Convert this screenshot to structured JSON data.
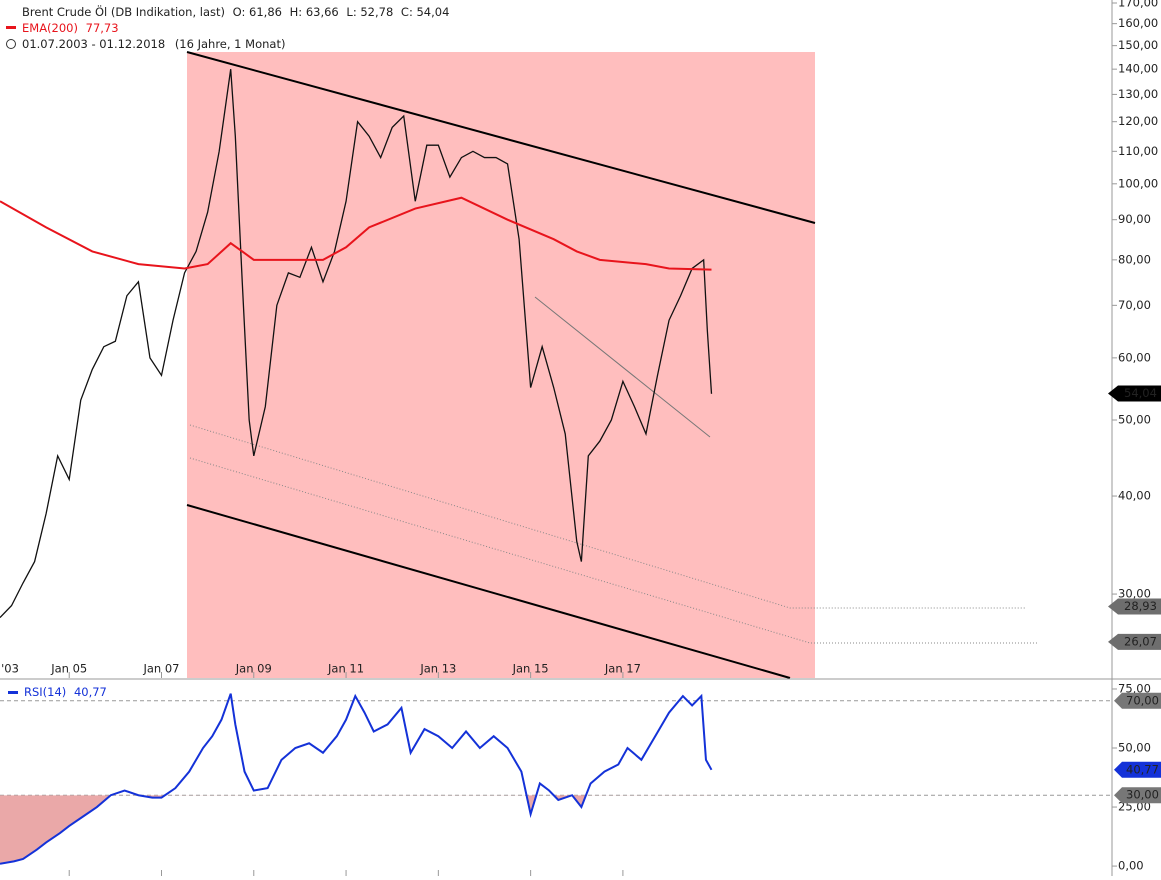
{
  "header": {
    "title": "Brent Crude Öl (DB Indikation, last)",
    "open": "O: 61,86",
    "high": "H: 63,66",
    "low": "L: 52,78",
    "close": "C: 54,04",
    "ema_name": "EMA(200)",
    "ema_value": "77,73",
    "period": "01.07.2003 - 01.12.2018",
    "duration": "(16 Jahre, 1 Monat)"
  },
  "chart_data": [
    {
      "type": "line",
      "log_scale": true,
      "ylim": [
        23.45,
        171.5
      ],
      "xlim": [
        2003.5,
        2027.6
      ],
      "yticks": [
        {
          "value": 170,
          "label": "170,00"
        },
        {
          "value": 160,
          "label": "160,00"
        },
        {
          "value": 150,
          "label": "150,00"
        },
        {
          "value": 140,
          "label": "140,00"
        },
        {
          "value": 130,
          "label": "130,00"
        },
        {
          "value": 120,
          "label": "120,00"
        },
        {
          "value": 110,
          "label": "110,00"
        },
        {
          "value": 100,
          "label": "100,00"
        },
        {
          "value": 90,
          "label": "90,00"
        },
        {
          "value": 80,
          "label": "80,00"
        },
        {
          "value": 70,
          "label": "70,00"
        },
        {
          "value": 60,
          "label": "60,00"
        },
        {
          "value": 50,
          "label": "50,00"
        },
        {
          "value": 40,
          "label": "40,00"
        },
        {
          "value": 30,
          "label": "30,00"
        }
      ],
      "xticks": [
        {
          "value": 2003,
          "label": "'03"
        },
        {
          "value": 2005,
          "label": "Jan 05"
        },
        {
          "value": 2007,
          "label": "Jan 07"
        },
        {
          "value": 2009,
          "label": "Jan 09"
        },
        {
          "value": 2011,
          "label": "Jan 11"
        },
        {
          "value": 2013,
          "label": "Jan 13"
        },
        {
          "value": 2015,
          "label": "Jan 15"
        },
        {
          "value": 2017,
          "label": "Jan 17"
        }
      ],
      "series": [
        {
          "name": "Brent Crude Öl",
          "color": "#111111",
          "x": [
            2003.5,
            2003.75,
            2004,
            2004.25,
            2004.5,
            2004.75,
            2005,
            2005.25,
            2005.5,
            2005.75,
            2006,
            2006.25,
            2006.5,
            2006.75,
            2007,
            2007.25,
            2007.5,
            2007.75,
            2008,
            2008.25,
            2008.5,
            2008.6,
            2008.75,
            2008.9,
            2009,
            2009.25,
            2009.5,
            2009.75,
            2010,
            2010.25,
            2010.5,
            2010.75,
            2011,
            2011.25,
            2011.5,
            2011.75,
            2012,
            2012.25,
            2012.5,
            2012.75,
            2013,
            2013.25,
            2013.5,
            2013.75,
            2014,
            2014.25,
            2014.5,
            2014.75,
            2015,
            2015.25,
            2015.5,
            2015.75,
            2016,
            2016.1,
            2016.25,
            2016.5,
            2016.75,
            2017,
            2017.25,
            2017.5,
            2017.75,
            2018,
            2018.25,
            2018.5,
            2018.75,
            2018.83,
            2018.92
          ],
          "values": [
            28,
            29,
            31,
            33,
            38,
            45,
            42,
            53,
            58,
            62,
            63,
            72,
            75,
            60,
            57,
            67,
            77,
            82,
            92,
            110,
            140,
            115,
            75,
            50,
            45,
            52,
            70,
            77,
            76,
            83,
            75,
            82,
            95,
            120,
            115,
            108,
            118,
            122,
            95,
            112,
            112,
            102,
            108,
            110,
            108,
            108,
            106,
            85,
            55,
            62,
            55,
            48,
            35,
            33,
            45,
            47,
            50,
            56,
            52,
            48,
            57,
            67,
            72,
            78,
            80,
            65,
            54
          ]
        },
        {
          "name": "EMA(200)",
          "color": "#e8141c",
          "x": [
            2003.5,
            2004.5,
            2005.5,
            2006.5,
            2007.5,
            2008,
            2008.5,
            2008.75,
            2009,
            2010,
            2010.5,
            2011,
            2011.5,
            2012.5,
            2013.5,
            2014.5,
            2015.5,
            2016,
            2016.5,
            2017.5,
            2018,
            2018.92
          ],
          "values": [
            95,
            88,
            82,
            79,
            78,
            79,
            84,
            82,
            80,
            80,
            80,
            83,
            88,
            93,
            96,
            90,
            85,
            82,
            80,
            79,
            78,
            77.73
          ]
        }
      ],
      "price_tags": [
        {
          "value": 54.04,
          "label": "54,04",
          "color": "#000000"
        },
        {
          "value": 28.93,
          "label": "28,93",
          "color": "#6e6e6e"
        },
        {
          "value": 26.07,
          "label": "26,07",
          "color": "#6e6e6e"
        }
      ]
    },
    {
      "type": "line",
      "ylim": [
        -4.2,
        78.8
      ],
      "xlim": [
        2003.5,
        2027.6
      ],
      "yticks": [
        {
          "value": 75,
          "label": "75,00"
        },
        {
          "value": 50,
          "label": "50,00"
        },
        {
          "value": 25,
          "label": "25,00"
        },
        {
          "value": 0,
          "label": "0,00"
        }
      ],
      "xticks": [
        2005,
        2007,
        2009,
        2011,
        2013,
        2015,
        2017
      ],
      "levels": [
        {
          "value": 70,
          "label": "70,00"
        },
        {
          "value": 30,
          "label": "30,00"
        }
      ],
      "series": [
        {
          "name": "RSI(14)",
          "last_label": "40,77",
          "color": "#1432d8",
          "x": [
            2003.5,
            2003.8,
            2004,
            2004.3,
            2004.5,
            2004.8,
            2005,
            2005.3,
            2005.6,
            2005.9,
            2006.2,
            2006.5,
            2006.8,
            2007,
            2007.3,
            2007.6,
            2007.9,
            2008.1,
            2008.3,
            2008.5,
            2008.6,
            2008.8,
            2009,
            2009.3,
            2009.6,
            2009.9,
            2010.2,
            2010.5,
            2010.8,
            2011,
            2011.2,
            2011.4,
            2011.6,
            2011.9,
            2012.2,
            2012.4,
            2012.7,
            2013,
            2013.3,
            2013.6,
            2013.9,
            2014.2,
            2014.5,
            2014.8,
            2015,
            2015.2,
            2015.4,
            2015.6,
            2015.9,
            2016.1,
            2016.3,
            2016.6,
            2016.9,
            2017.1,
            2017.4,
            2017.7,
            2018,
            2018.3,
            2018.5,
            2018.7,
            2018.8,
            2018.92
          ],
          "values": [
            1,
            2,
            3,
            7,
            10,
            14,
            17,
            21,
            25,
            30,
            32,
            30,
            29,
            29,
            33,
            40,
            50,
            55,
            62,
            73,
            60,
            40,
            32,
            33,
            45,
            50,
            52,
            48,
            55,
            62,
            72,
            65,
            57,
            60,
            67,
            48,
            58,
            55,
            50,
            57,
            50,
            55,
            50,
            40,
            22,
            35,
            32,
            28,
            30,
            25,
            35,
            40,
            43,
            50,
            45,
            55,
            65,
            72,
            68,
            72,
            45,
            40.77
          ]
        }
      ]
    }
  ]
}
